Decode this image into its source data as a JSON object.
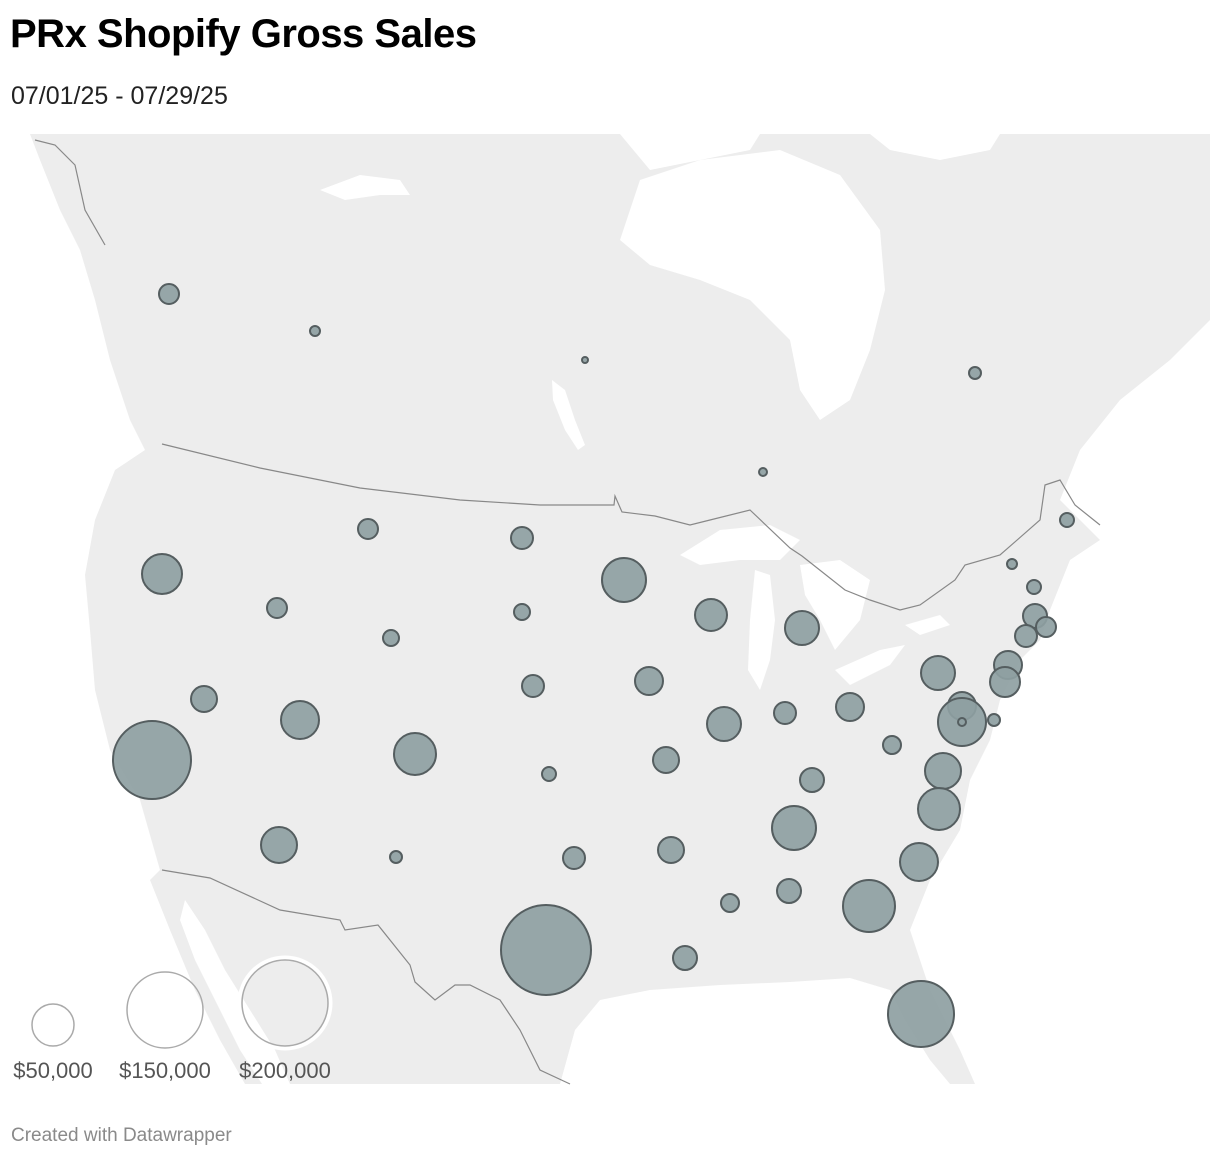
{
  "header": {
    "title": "PRx Shopify Gross Sales",
    "subtitle": "07/01/25 - 07/29/25"
  },
  "map": {
    "region": "North America",
    "type": "proportional-symbol",
    "colors": {
      "land": "#ededed",
      "water": "#ffffff",
      "border": "#888888",
      "symbol_fill": "#8ea0a2",
      "symbol_stroke": "#555e60",
      "legend_stroke": "#aaaaaa"
    },
    "legend": [
      {
        "label": "$50,000",
        "value": 50000
      },
      {
        "label": "$150,000",
        "value": 150000
      },
      {
        "label": "$200,000",
        "value": 200000
      }
    ]
  },
  "footer": {
    "credit": "Created with Datawrapper"
  }
}
